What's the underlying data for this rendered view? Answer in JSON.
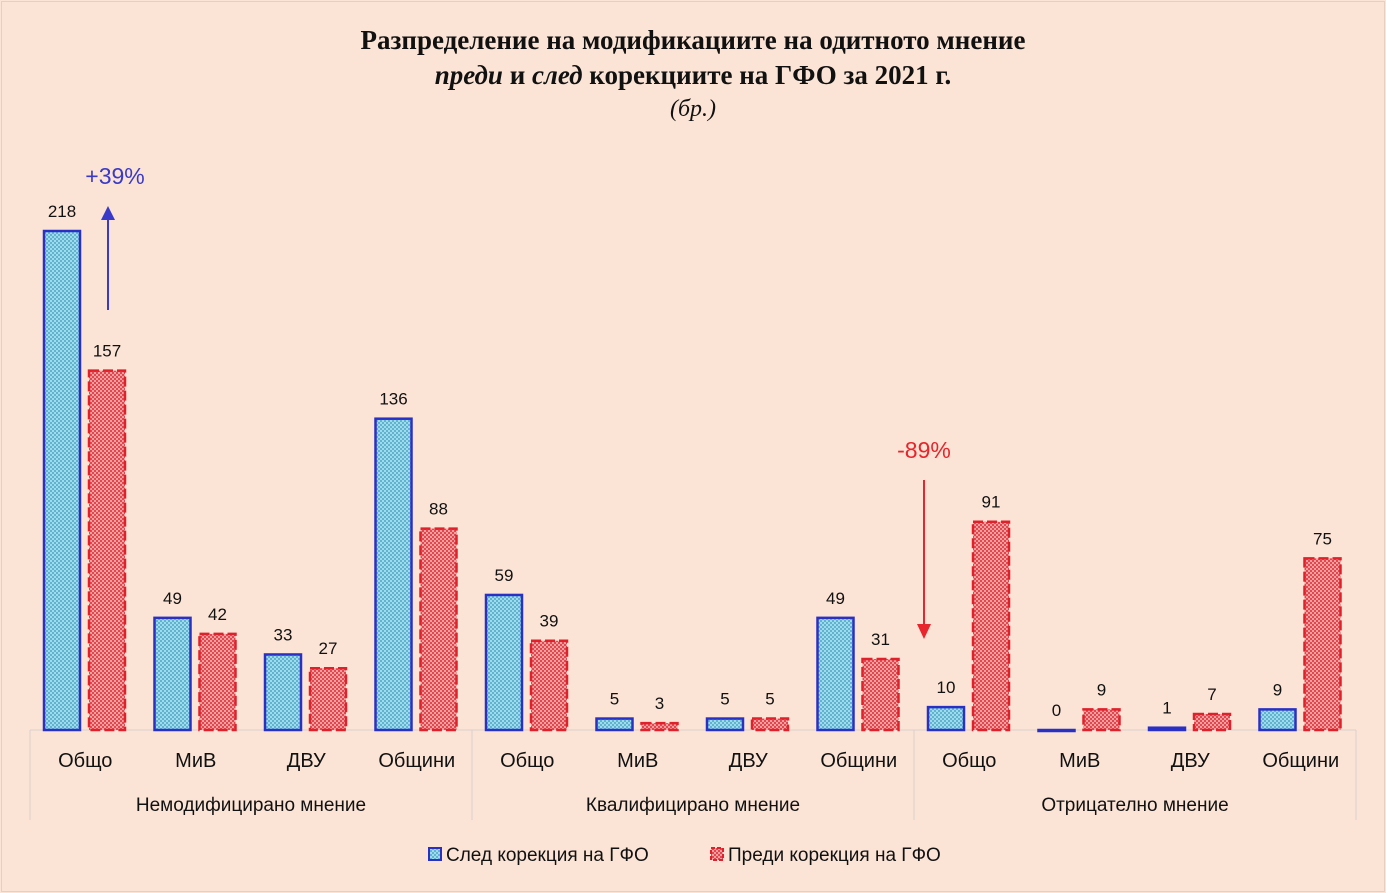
{
  "chart_data": {
    "type": "bar",
    "title_line1": "Разпределение на модификациите на одитното мнение",
    "title_line2_em1": "преди",
    "title_line2_mid": " и ",
    "title_line2_em2": "след",
    "title_line2_rest": " корекциите на ГФО за 2021 г.",
    "subtitle": "(бр.)",
    "groups": [
      {
        "label": "Немодифицирано мнение",
        "categories": [
          "Общо",
          "МиВ",
          "ДВУ",
          "Общини"
        ]
      },
      {
        "label": "Квалифицирано мнение",
        "categories": [
          "Общо",
          "МиВ",
          "ДВУ",
          "Общини"
        ]
      },
      {
        "label": "Отрицателно мнение",
        "categories": [
          "Общо",
          "МиВ",
          "ДВУ",
          "Общини"
        ]
      }
    ],
    "series": [
      {
        "name": "След корекция на ГФО",
        "color": "#2a30c4",
        "fill": "#9fdbe9",
        "values": [
          218,
          49,
          33,
          136,
          59,
          5,
          5,
          49,
          10,
          0,
          1,
          9
        ]
      },
      {
        "name": "Преди корекция на ГФО",
        "color": "#e0202a",
        "fill": "#f08a8a",
        "values": [
          157,
          42,
          27,
          88,
          39,
          3,
          5,
          31,
          91,
          9,
          7,
          75
        ]
      }
    ],
    "annotations": [
      {
        "text": "+39%",
        "color": "#3a3ac8",
        "direction": "up",
        "category_index": 0
      },
      {
        "text": "-89%",
        "color": "#e8242c",
        "direction": "down",
        "category_index": 8
      }
    ],
    "ylim": [
      0,
      218
    ],
    "grid": false,
    "legend": "bottom"
  }
}
